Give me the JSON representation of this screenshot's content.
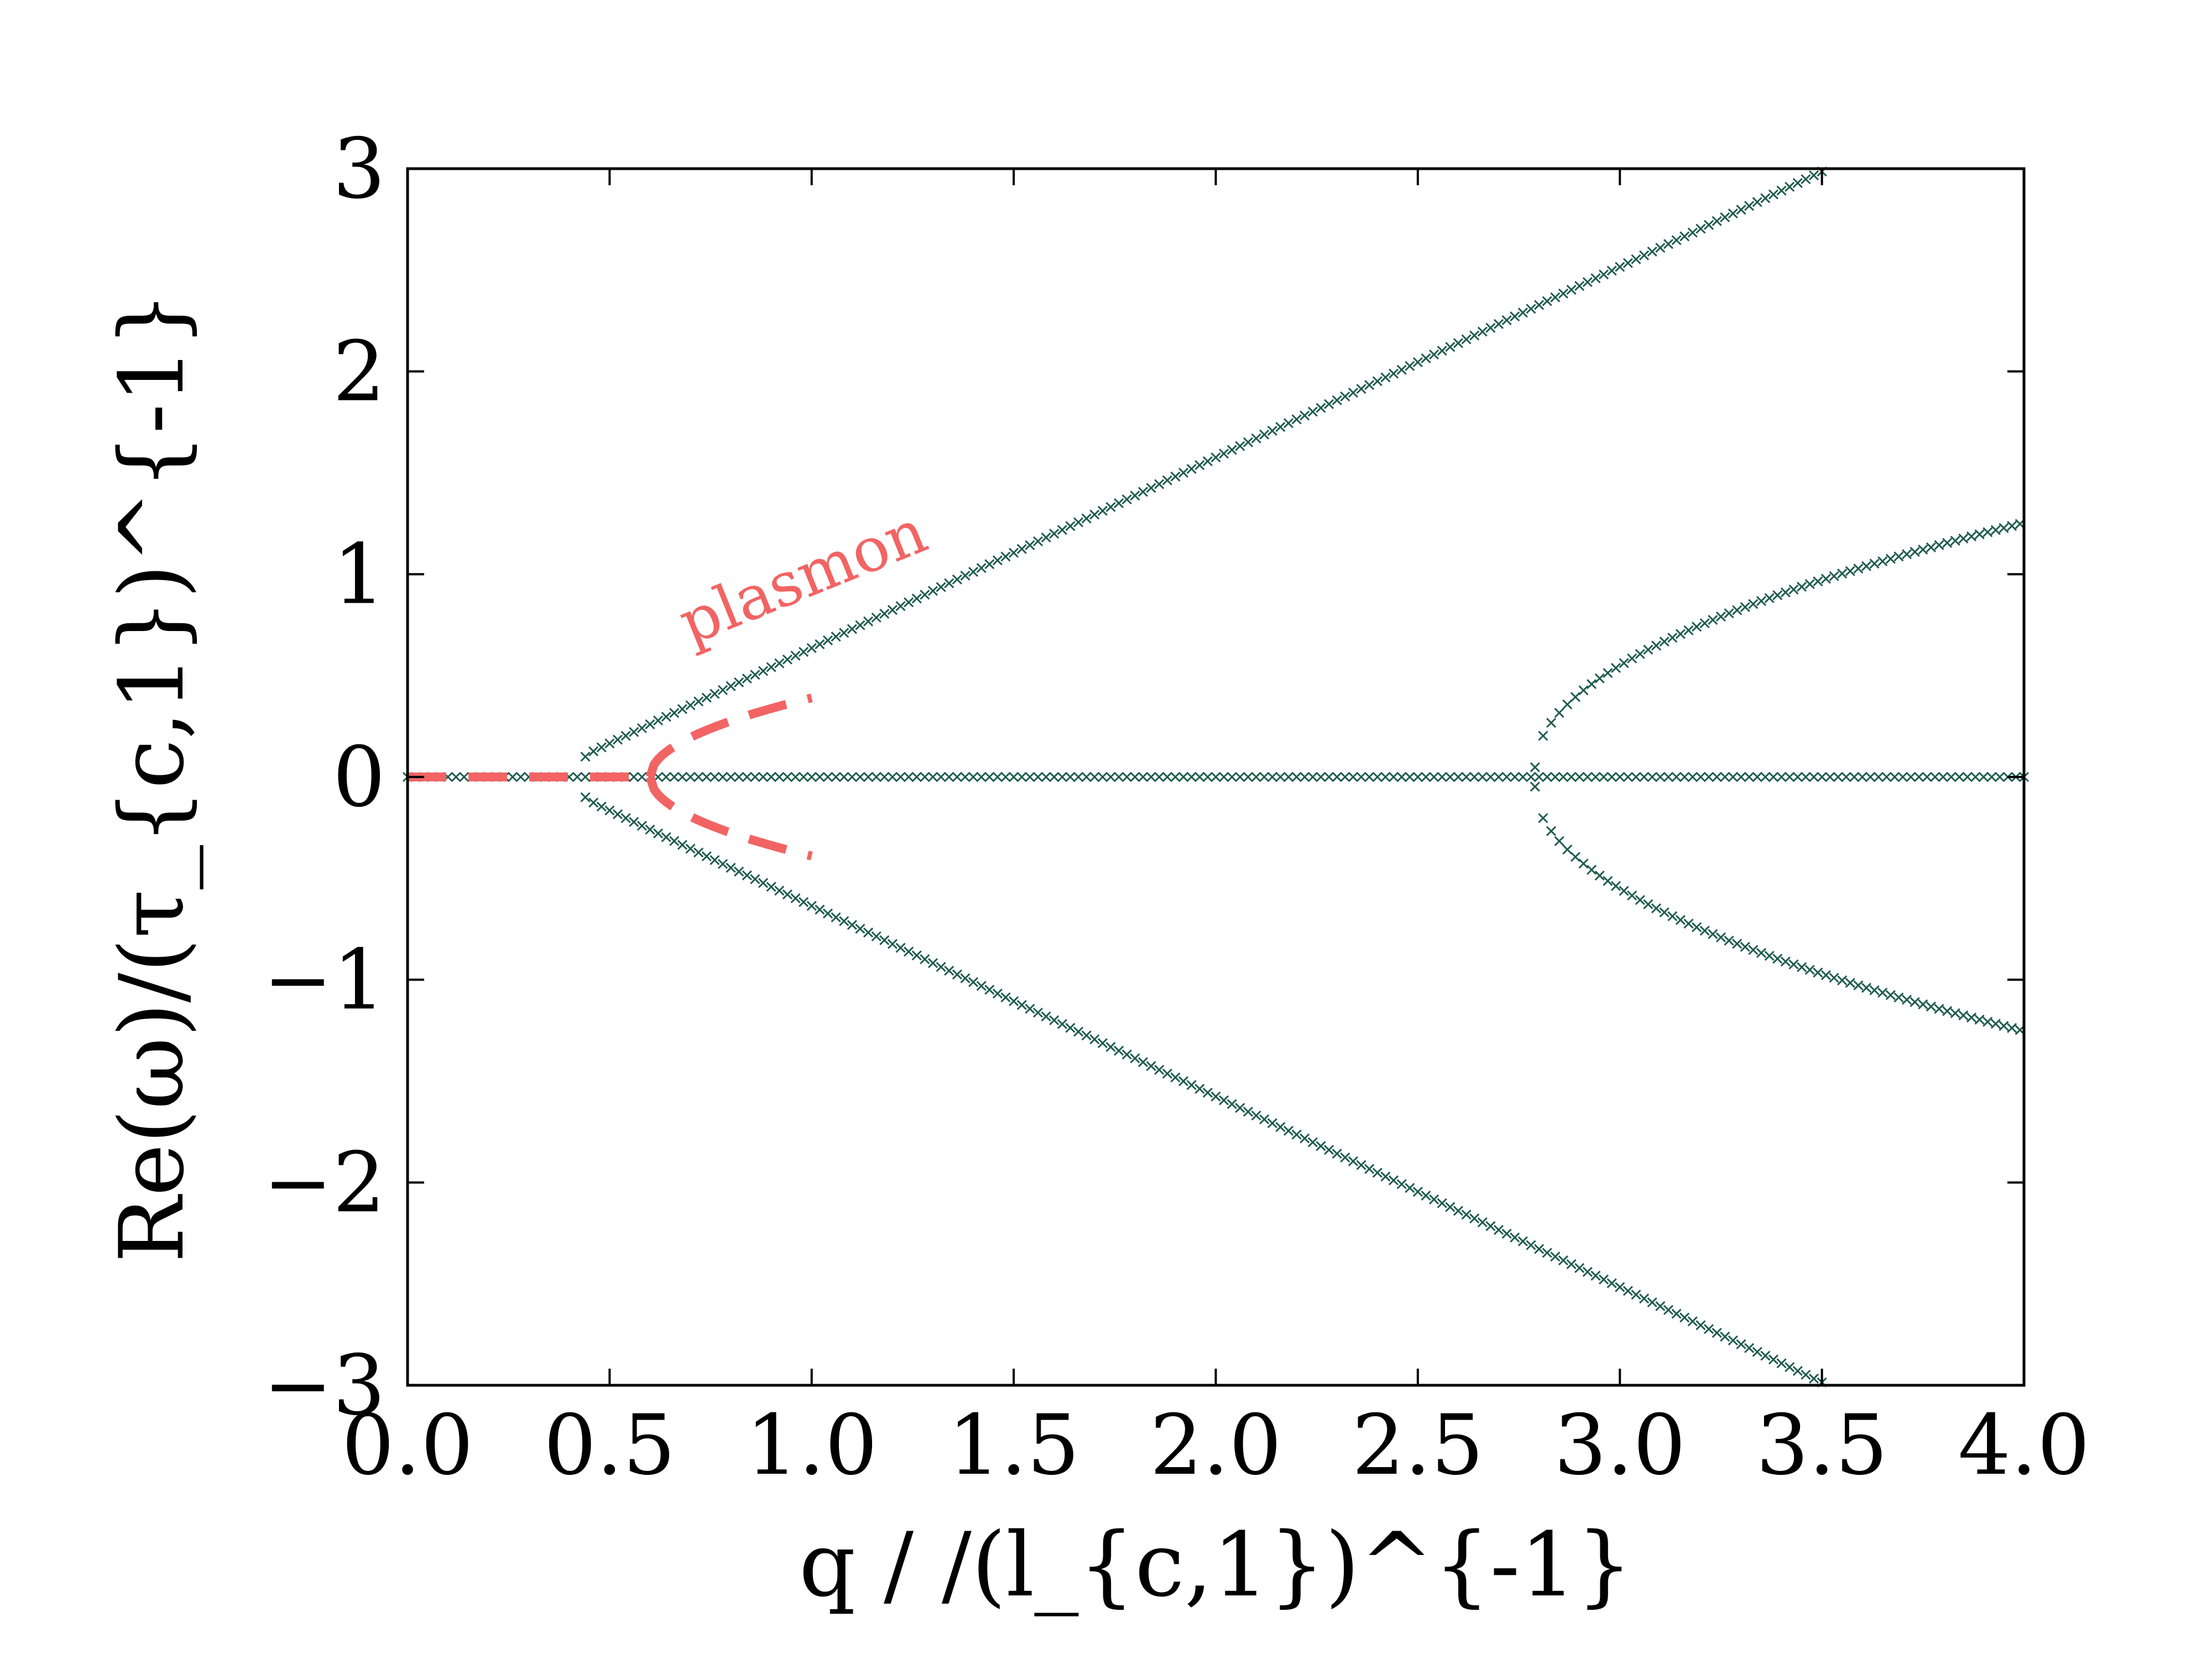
{
  "chart_data": {
    "type": "scatter",
    "title": "",
    "xlabel": "q / /(l_{c,1})^{-1}",
    "ylabel": "Re(ω)/(τ_{c,1})^{-1}",
    "xlim": [
      0.0,
      4.0
    ],
    "ylim": [
      -3,
      3
    ],
    "xticks": [
      "0.0",
      "0.5",
      "1.0",
      "1.5",
      "2.0",
      "2.5",
      "3.0",
      "3.5",
      "4.0"
    ],
    "yticks": [
      "−3",
      "−2",
      "−1",
      "0",
      "1",
      "2",
      "3"
    ],
    "grid": false,
    "colors": {
      "numeric": "#1f5c4c",
      "analytic": "#f26464"
    },
    "annotation": {
      "text": "plasmon",
      "at": [
        0.7,
        0.65
      ],
      "rotation_deg": -22,
      "color": "#f26464"
    },
    "series": [
      {
        "marker": "x",
        "color": "#1f5c4c",
        "segments": [
          {
            "type": "line",
            "x": [
              0.0,
              4.0
            ],
            "y": [
              0.0,
              0.0
            ]
          },
          {
            "type": "sqrtbranch",
            "x0": 0.44,
            "x_end": 3.62,
            "q0": 0.44,
            "a": 1.0,
            "b": 0.1,
            "sign": 1
          },
          {
            "type": "sqrtbranch",
            "x0": 0.44,
            "x_end": 3.62,
            "q0": 0.44,
            "a": 1.0,
            "b": 0.1,
            "sign": -1
          },
          {
            "type": "sqrtbranch",
            "x0": 2.79,
            "x_end": 4.0,
            "q0": 2.79,
            "a": 1.0,
            "b": 0.16,
            "sign": 1
          },
          {
            "type": "sqrtbranch",
            "x0": 2.79,
            "x_end": 4.0,
            "q0": 2.79,
            "a": 1.0,
            "b": 0.16,
            "sign": -1
          }
        ]
      },
      {
        "line": "dashed",
        "color": "#f26464",
        "segments": [
          {
            "type": "line",
            "x": [
              0.0,
              0.6
            ],
            "y": [
              0.0,
              0.0
            ]
          },
          {
            "type": "sqrtcurve",
            "x0": 0.6,
            "x_end": 1.0,
            "q0": 0.6,
            "k": 0.6,
            "sign": 1
          },
          {
            "type": "sqrtcurve",
            "x0": 0.6,
            "x_end": 1.0,
            "q0": 0.6,
            "k": 0.6,
            "sign": -1
          }
        ]
      }
    ]
  }
}
